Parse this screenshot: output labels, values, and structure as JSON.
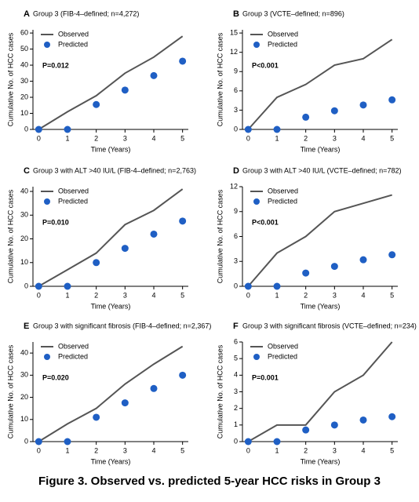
{
  "chart_data": [
    {
      "type": "line",
      "panel": "A",
      "title": "Group 3 (FIB-4–defined; n=4,272)",
      "xlabel": "Time (Years)",
      "ylabel": "Cumulative No. of HCC cases",
      "annotation": "P=0.012",
      "x": [
        0,
        1,
        2,
        3,
        4,
        5
      ],
      "xlim": [
        -0.2,
        5.2
      ],
      "xticks": [
        0,
        1,
        2,
        3,
        4,
        5
      ],
      "ylim": [
        0,
        62
      ],
      "yticks": [
        0,
        10,
        20,
        30,
        40,
        50,
        60
      ],
      "legend": "upper left",
      "series": [
        {
          "name": "Observed",
          "color": "#555555",
          "style": "line",
          "values": [
            0,
            11,
            21,
            35,
            45,
            58
          ]
        },
        {
          "name": "Predicted",
          "color": "#1f5fc4",
          "style": "marker",
          "values": [
            0,
            0,
            15.5,
            24.5,
            33.5,
            42.5
          ]
        }
      ]
    },
    {
      "type": "line",
      "panel": "B",
      "title": "Group 3 (VCTE–defined; n=896)",
      "xlabel": "Time (Years)",
      "ylabel": "Cumulative No. of HCC cases",
      "annotation": "P<0.001",
      "x": [
        0,
        1,
        2,
        3,
        4,
        5
      ],
      "xlim": [
        -0.2,
        5.2
      ],
      "xticks": [
        0,
        1,
        2,
        3,
        4,
        5
      ],
      "ylim": [
        0,
        15.5
      ],
      "yticks": [
        0,
        3,
        6,
        9,
        12,
        15
      ],
      "legend": "upper left",
      "series": [
        {
          "name": "Observed",
          "color": "#555555",
          "style": "line",
          "values": [
            0,
            5,
            7,
            10,
            11,
            14
          ]
        },
        {
          "name": "Predicted",
          "color": "#1f5fc4",
          "style": "marker",
          "values": [
            0,
            0,
            1.9,
            2.9,
            3.8,
            4.6
          ]
        }
      ]
    },
    {
      "type": "line",
      "panel": "C",
      "title": "Group 3 with ALT >40 IU/L (FIB-4–defined; n=2,763)",
      "xlabel": "Time (Years)",
      "ylabel": "Cumulative No. of HCC cases",
      "annotation": "P=0.010",
      "x": [
        0,
        1,
        2,
        3,
        4,
        5
      ],
      "xlim": [
        -0.2,
        5.2
      ],
      "xticks": [
        0,
        1,
        2,
        3,
        4,
        5
      ],
      "ylim": [
        0,
        42
      ],
      "yticks": [
        0,
        10,
        20,
        30,
        40
      ],
      "legend": "upper left",
      "series": [
        {
          "name": "Observed",
          "color": "#555555",
          "style": "line",
          "values": [
            0,
            7,
            14,
            26,
            32,
            41
          ]
        },
        {
          "name": "Predicted",
          "color": "#1f5fc4",
          "style": "marker",
          "values": [
            0,
            0,
            10,
            16,
            22,
            27.5
          ]
        }
      ]
    },
    {
      "type": "line",
      "panel": "D",
      "title": "Group 3 with ALT >40 IU/L (VCTE–defined; n=782)",
      "xlabel": "Time (Years)",
      "ylabel": "Cumulative No. of HCC cases",
      "annotation": "P<0.001",
      "x": [
        0,
        1,
        2,
        3,
        4,
        5
      ],
      "xlim": [
        -0.2,
        5.2
      ],
      "xticks": [
        0,
        1,
        2,
        3,
        4,
        5
      ],
      "ylim": [
        0,
        12
      ],
      "yticks": [
        0,
        3,
        6,
        9,
        12
      ],
      "legend": "upper left",
      "series": [
        {
          "name": "Observed",
          "color": "#555555",
          "style": "line",
          "values": [
            0,
            4,
            6,
            9,
            10,
            11
          ]
        },
        {
          "name": "Predicted",
          "color": "#1f5fc4",
          "style": "marker",
          "values": [
            0,
            0,
            1.6,
            2.4,
            3.2,
            3.8
          ]
        }
      ]
    },
    {
      "type": "line",
      "panel": "E",
      "title": "Group 3 with significant fibrosis (FIB-4–defined; n=2,367)",
      "xlabel": "Time (Years)",
      "ylabel": "Cumulative No. of HCC cases",
      "annotation": "P=0.020",
      "x": [
        0,
        1,
        2,
        3,
        4,
        5
      ],
      "xlim": [
        -0.2,
        5.2
      ],
      "xticks": [
        0,
        1,
        2,
        3,
        4,
        5
      ],
      "ylim": [
        0,
        45
      ],
      "yticks": [
        0,
        10,
        20,
        30,
        40
      ],
      "legend": "upper left",
      "series": [
        {
          "name": "Observed",
          "color": "#555555",
          "style": "line",
          "values": [
            0,
            8,
            15,
            26,
            35,
            43
          ]
        },
        {
          "name": "Predicted",
          "color": "#1f5fc4",
          "style": "marker",
          "values": [
            0,
            0,
            11,
            17.5,
            24,
            30
          ]
        }
      ]
    },
    {
      "type": "line",
      "panel": "F",
      "title": "Group 3 with significant fibrosis (VCTE–defined; n=234)",
      "xlabel": "Time (Years)",
      "ylabel": "Cumulative No. of HCC cases",
      "annotation": "P=0.001",
      "x": [
        0,
        1,
        2,
        3,
        4,
        5
      ],
      "xlim": [
        -0.2,
        5.2
      ],
      "xticks": [
        0,
        1,
        2,
        3,
        4,
        5
      ],
      "ylim": [
        0,
        6
      ],
      "yticks": [
        0,
        1,
        2,
        3,
        4,
        5,
        6
      ],
      "legend": "upper left",
      "series": [
        {
          "name": "Observed",
          "color": "#555555",
          "style": "line",
          "values": [
            0,
            1,
            1,
            3,
            4,
            6
          ]
        },
        {
          "name": "Predicted",
          "color": "#1f5fc4",
          "style": "marker",
          "values": [
            0,
            0,
            0.7,
            1,
            1.3,
            1.5
          ]
        }
      ]
    }
  ],
  "caption": "Figure 3. Observed vs. predicted 5-year HCC risks in Group 3"
}
